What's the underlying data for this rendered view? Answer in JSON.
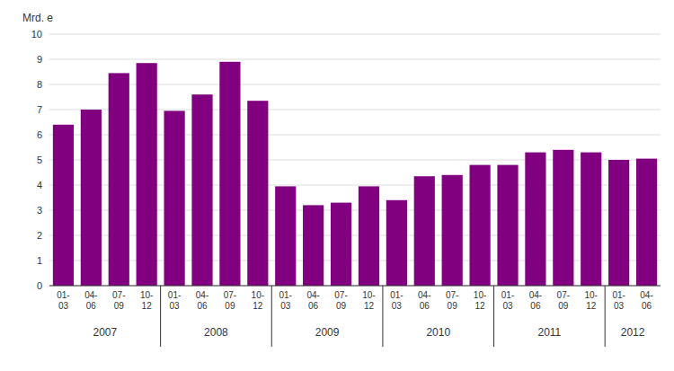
{
  "chart_data": {
    "type": "bar",
    "ylabel": "Mrd. e",
    "categories": [
      "01-\n03",
      "04-\n06",
      "07-\n09",
      "10-\n12",
      "01-\n03",
      "04-\n06",
      "07-\n09",
      "10-\n12",
      "01-\n03",
      "04-\n06",
      "07-\n09",
      "10-\n12",
      "01-\n03",
      "04-\n06",
      "07-\n09",
      "10-\n12",
      "01-\n03",
      "04-\n06",
      "07-\n09",
      "10-\n12",
      "01-\n03",
      "04-\n06"
    ],
    "values": [
      6.4,
      7.0,
      8.45,
      8.85,
      6.95,
      7.6,
      8.9,
      7.35,
      3.95,
      3.2,
      3.3,
      3.95,
      3.4,
      4.35,
      4.4,
      4.8,
      4.8,
      5.3,
      5.4,
      5.3,
      5.0,
      5.05
    ],
    "annotations": [
      "2007",
      "2008",
      "2009",
      "2010",
      "2011",
      "2012"
    ],
    "color": "#800080",
    "ylim": [
      0,
      10
    ],
    "yticks": [
      0,
      1,
      2,
      3,
      4,
      5,
      6,
      7,
      8,
      9,
      10
    ],
    "grid": true
  }
}
